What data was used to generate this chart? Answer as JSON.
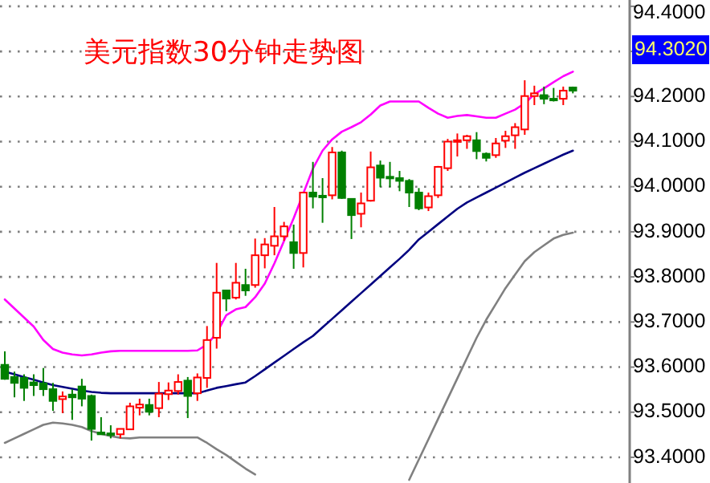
{
  "chart_data": {
    "type": "candlestick",
    "title": "美元指数30分钟走势图",
    "categories": [
      null,
      null,
      null,
      null,
      null,
      null,
      null,
      null,
      null,
      null,
      null,
      null,
      null,
      null,
      null,
      null,
      null,
      null,
      null,
      null,
      null,
      null,
      null,
      null,
      null,
      null,
      null,
      null,
      null,
      null,
      null,
      null,
      null,
      null,
      null,
      null,
      null,
      null,
      null,
      null,
      null,
      null,
      null,
      null,
      null,
      null,
      null,
      null,
      null,
      null,
      null,
      null,
      null,
      null,
      null,
      null,
      null,
      null,
      null,
      null
    ],
    "ohlc": [
      [
        93.605,
        93.635,
        93.572,
        93.574
      ],
      [
        93.578,
        93.59,
        93.533,
        93.565
      ],
      [
        93.576,
        93.584,
        93.525,
        93.554
      ],
      [
        93.566,
        93.584,
        93.536,
        93.56
      ],
      [
        93.564,
        93.598,
        93.536,
        93.551
      ],
      [
        93.551,
        93.565,
        93.503,
        93.525
      ],
      [
        93.529,
        93.546,
        93.498,
        93.535
      ],
      [
        93.539,
        93.551,
        93.483,
        93.533
      ],
      [
        93.557,
        93.574,
        93.513,
        93.53
      ],
      [
        93.536,
        93.539,
        93.437,
        93.463
      ],
      [
        93.455,
        93.489,
        93.451,
        93.451
      ],
      [
        93.453,
        93.471,
        93.442,
        93.451
      ],
      [
        93.451,
        93.463,
        93.442,
        93.463
      ],
      [
        93.462,
        93.521,
        93.462,
        93.513
      ],
      [
        93.51,
        93.53,
        93.493,
        93.517
      ],
      [
        93.516,
        93.53,
        93.493,
        93.501
      ],
      [
        93.509,
        93.567,
        93.489,
        93.541
      ],
      [
        93.54,
        93.566,
        93.527,
        93.548
      ],
      [
        93.547,
        93.584,
        93.539,
        93.567
      ],
      [
        93.57,
        93.578,
        93.487,
        93.536
      ],
      [
        93.542,
        93.586,
        93.525,
        93.577
      ],
      [
        93.576,
        93.691,
        93.554,
        93.66
      ],
      [
        93.665,
        93.831,
        93.641,
        93.765
      ],
      [
        93.77,
        93.77,
        93.724,
        93.752
      ],
      [
        93.754,
        93.831,
        93.75,
        93.787
      ],
      [
        93.782,
        93.818,
        93.758,
        93.77
      ],
      [
        93.782,
        93.885,
        93.776,
        93.848
      ],
      [
        93.848,
        93.886,
        93.819,
        93.872
      ],
      [
        93.869,
        93.955,
        93.848,
        93.89
      ],
      [
        93.89,
        93.922,
        93.88,
        93.912
      ],
      [
        93.877,
        93.916,
        93.818,
        93.853
      ],
      [
        93.853,
        93.987,
        93.821,
        93.987
      ],
      [
        93.987,
        94.055,
        93.952,
        93.978
      ],
      [
        93.98,
        94.019,
        93.92,
        93.978
      ],
      [
        93.981,
        94.088,
        93.972,
        94.076
      ],
      [
        94.076,
        94.08,
        93.973,
        93.975
      ],
      [
        93.973,
        93.973,
        93.884,
        93.937
      ],
      [
        93.94,
        93.987,
        93.91,
        93.963
      ],
      [
        93.969,
        94.078,
        93.967,
        94.043
      ],
      [
        94.047,
        94.058,
        93.999,
        94.02
      ],
      [
        94.022,
        94.055,
        93.999,
        94.02
      ],
      [
        94.019,
        94.035,
        93.99,
        94.013
      ],
      [
        94.013,
        94.017,
        93.955,
        93.987
      ],
      [
        93.987,
        93.997,
        93.948,
        93.952
      ],
      [
        93.954,
        93.987,
        93.946,
        93.979
      ],
      [
        93.981,
        94.046,
        93.975,
        94.044
      ],
      [
        94.041,
        94.106,
        94.035,
        94.1
      ],
      [
        94.102,
        94.118,
        94.067,
        94.103
      ],
      [
        94.103,
        94.115,
        94.084,
        94.112
      ],
      [
        94.103,
        94.121,
        94.061,
        94.079
      ],
      [
        94.073,
        94.076,
        94.056,
        94.064
      ],
      [
        94.07,
        94.108,
        94.064,
        94.096
      ],
      [
        94.102,
        94.124,
        94.086,
        94.112
      ],
      [
        94.114,
        94.141,
        94.084,
        94.132
      ],
      [
        94.127,
        94.236,
        94.115,
        94.201
      ],
      [
        94.201,
        94.224,
        94.181,
        94.207
      ],
      [
        94.203,
        94.222,
        94.183,
        94.195
      ],
      [
        94.195,
        94.219,
        94.189,
        94.192
      ],
      [
        94.195,
        94.222,
        94.181,
        94.213
      ],
      [
        94.22,
        94.222,
        94.207,
        94.213
      ]
    ],
    "series": [
      {
        "type": "line",
        "color": "#ff00ff",
        "values": [
          93.75,
          93.73,
          93.71,
          93.69,
          93.66,
          93.64,
          93.632,
          93.628,
          93.626,
          93.628,
          93.632,
          93.635,
          93.636,
          93.636,
          93.636,
          93.636,
          93.636,
          93.636,
          93.636,
          93.636,
          93.637,
          93.65,
          93.675,
          93.715,
          93.728,
          93.733,
          93.755,
          93.785,
          93.83,
          93.88,
          93.93,
          93.985,
          94.04,
          94.08,
          94.105,
          94.122,
          94.132,
          94.143,
          94.16,
          94.18,
          94.189,
          94.189,
          94.189,
          94.189,
          94.175,
          94.162,
          94.153,
          94.157,
          94.159,
          94.156,
          94.153,
          94.153,
          94.162,
          94.171,
          94.185,
          94.205,
          94.218,
          94.232,
          94.245,
          94.255
        ]
      },
      {
        "type": "line",
        "color": "#000080",
        "values": [
          93.59,
          93.584,
          93.578,
          93.572,
          93.566,
          93.56,
          93.556,
          93.552,
          93.548,
          93.545,
          93.543,
          93.542,
          93.542,
          93.542,
          93.542,
          93.542,
          93.542,
          93.542,
          93.542,
          93.542,
          93.542,
          93.548,
          93.554,
          93.558,
          93.562,
          93.566,
          93.58,
          93.595,
          93.61,
          93.625,
          93.64,
          93.655,
          93.669,
          93.688,
          93.707,
          93.726,
          93.745,
          93.764,
          93.783,
          93.802,
          93.821,
          93.84,
          93.86,
          93.883,
          93.9,
          93.917,
          93.934,
          93.951,
          93.965,
          93.976,
          93.987,
          93.998,
          94.009,
          94.02,
          94.031,
          94.041,
          94.051,
          94.061,
          94.071,
          94.08
        ]
      },
      {
        "type": "line",
        "color": "#808080",
        "values": [
          93.432,
          93.442,
          93.452,
          93.462,
          93.472,
          93.477,
          93.475,
          93.472,
          93.467,
          93.458,
          93.452,
          93.447,
          93.443,
          93.442,
          93.444,
          93.444,
          93.444,
          93.444,
          93.444,
          93.444,
          93.444,
          93.432,
          93.418,
          93.405,
          93.39,
          93.375,
          93.362,
          null,
          null,
          null,
          null,
          null,
          null,
          null,
          null,
          null,
          null,
          null,
          null,
          null,
          null,
          null,
          93.35,
          93.395,
          93.44,
          93.485,
          93.53,
          93.575,
          93.62,
          93.665,
          93.705,
          93.74,
          93.775,
          93.805,
          93.835,
          93.855,
          93.87,
          93.885,
          93.893,
          93.898
        ]
      }
    ],
    "ylim": [
      93.343,
      94.414
    ],
    "yticks": [
      {
        "value": 93.4,
        "label": "93.4000"
      },
      {
        "value": 93.5,
        "label": "93.5000"
      },
      {
        "value": 93.6,
        "label": "93.6000"
      },
      {
        "value": 93.7,
        "label": "93.7000"
      },
      {
        "value": 93.8,
        "label": "93.8000"
      },
      {
        "value": 93.9,
        "label": "93.9000"
      },
      {
        "value": 94.0,
        "label": "94.0000"
      },
      {
        "value": 94.1,
        "label": "94.1000"
      },
      {
        "value": 94.2,
        "label": "94.2000"
      },
      {
        "value": 94.3,
        "label": null
      },
      {
        "value": 94.4,
        "label": "94.4000"
      }
    ],
    "grid": "y",
    "tick_labels": "y",
    "annotations": [
      "94.3020"
    ]
  }
}
